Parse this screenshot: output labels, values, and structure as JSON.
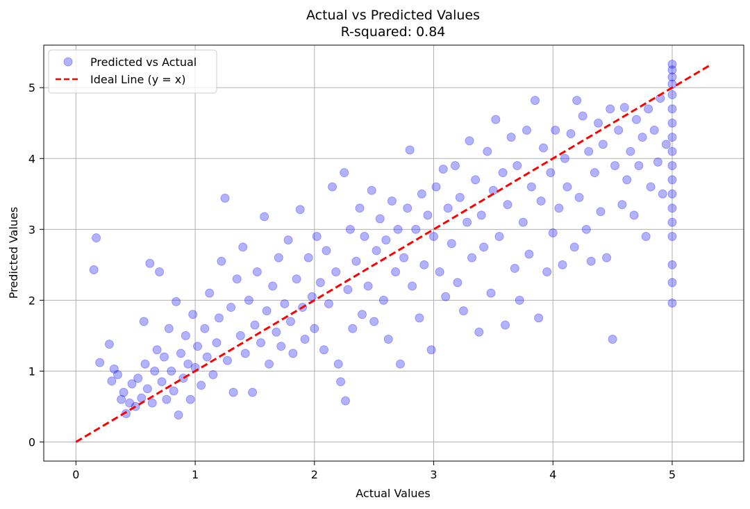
{
  "chart_data": {
    "type": "scatter",
    "title": "Actual vs Predicted Values",
    "subtitle": "R-squared: 0.84",
    "xlabel": "Actual Values",
    "ylabel": "Predicted Values",
    "xlim": [
      -0.27,
      5.6
    ],
    "ylim": [
      -0.27,
      5.6
    ],
    "x_ticks": [
      0,
      1,
      2,
      3,
      4,
      5
    ],
    "y_ticks": [
      0,
      1,
      2,
      3,
      4,
      5
    ],
    "grid": true,
    "legend_position": "top-left",
    "series": [
      {
        "name": "Predicted vs Actual",
        "kind": "scatter",
        "color": "#0000ff",
        "opacity": 0.3,
        "points": [
          [
            0.15,
            2.43
          ],
          [
            0.17,
            2.88
          ],
          [
            0.2,
            1.12
          ],
          [
            0.28,
            1.38
          ],
          [
            0.3,
            0.86
          ],
          [
            0.32,
            1.03
          ],
          [
            0.35,
            0.95
          ],
          [
            0.38,
            0.6
          ],
          [
            0.4,
            0.7
          ],
          [
            0.42,
            0.4
          ],
          [
            0.45,
            0.55
          ],
          [
            0.47,
            0.82
          ],
          [
            0.5,
            0.5
          ],
          [
            0.52,
            0.9
          ],
          [
            0.55,
            0.62
          ],
          [
            0.57,
            1.7
          ],
          [
            0.58,
            1.1
          ],
          [
            0.6,
            0.75
          ],
          [
            0.62,
            2.52
          ],
          [
            0.64,
            0.55
          ],
          [
            0.66,
            1.0
          ],
          [
            0.68,
            1.3
          ],
          [
            0.7,
            2.4
          ],
          [
            0.72,
            0.85
          ],
          [
            0.74,
            1.2
          ],
          [
            0.76,
            0.6
          ],
          [
            0.78,
            1.6
          ],
          [
            0.8,
            1.0
          ],
          [
            0.82,
            0.72
          ],
          [
            0.84,
            1.98
          ],
          [
            0.86,
            0.38
          ],
          [
            0.88,
            1.25
          ],
          [
            0.9,
            0.9
          ],
          [
            0.92,
            1.5
          ],
          [
            0.94,
            1.1
          ],
          [
            0.96,
            0.6
          ],
          [
            0.98,
            1.8
          ],
          [
            1.0,
            1.05
          ],
          [
            1.02,
            1.35
          ],
          [
            1.05,
            0.8
          ],
          [
            1.08,
            1.6
          ],
          [
            1.1,
            1.2
          ],
          [
            1.12,
            2.1
          ],
          [
            1.15,
            0.95
          ],
          [
            1.18,
            1.4
          ],
          [
            1.2,
            1.75
          ],
          [
            1.22,
            2.55
          ],
          [
            1.25,
            3.44
          ],
          [
            1.27,
            1.15
          ],
          [
            1.3,
            1.9
          ],
          [
            1.32,
            0.7
          ],
          [
            1.35,
            2.3
          ],
          [
            1.38,
            1.5
          ],
          [
            1.4,
            2.75
          ],
          [
            1.42,
            1.25
          ],
          [
            1.45,
            2.0
          ],
          [
            1.48,
            0.7
          ],
          [
            1.5,
            1.65
          ],
          [
            1.52,
            2.4
          ],
          [
            1.55,
            1.4
          ],
          [
            1.58,
            3.18
          ],
          [
            1.6,
            1.85
          ],
          [
            1.62,
            1.1
          ],
          [
            1.65,
            2.2
          ],
          [
            1.68,
            1.55
          ],
          [
            1.7,
            2.6
          ],
          [
            1.72,
            1.35
          ],
          [
            1.75,
            1.95
          ],
          [
            1.78,
            2.85
          ],
          [
            1.8,
            1.7
          ],
          [
            1.82,
            1.25
          ],
          [
            1.85,
            2.3
          ],
          [
            1.88,
            3.28
          ],
          [
            1.9,
            1.9
          ],
          [
            1.92,
            1.45
          ],
          [
            1.95,
            2.6
          ],
          [
            1.98,
            2.05
          ],
          [
            2.0,
            1.6
          ],
          [
            2.02,
            2.9
          ],
          [
            2.05,
            2.25
          ],
          [
            2.08,
            1.3
          ],
          [
            2.1,
            2.7
          ],
          [
            2.12,
            1.95
          ],
          [
            2.15,
            3.6
          ],
          [
            2.18,
            2.4
          ],
          [
            2.2,
            1.1
          ],
          [
            2.22,
            0.85
          ],
          [
            2.25,
            3.8
          ],
          [
            2.26,
            0.58
          ],
          [
            2.28,
            2.15
          ],
          [
            2.3,
            3.0
          ],
          [
            2.32,
            1.6
          ],
          [
            2.35,
            2.55
          ],
          [
            2.38,
            3.3
          ],
          [
            2.4,
            1.8
          ],
          [
            2.42,
            2.9
          ],
          [
            2.45,
            2.2
          ],
          [
            2.48,
            3.55
          ],
          [
            2.5,
            1.7
          ],
          [
            2.52,
            2.7
          ],
          [
            2.55,
            3.15
          ],
          [
            2.58,
            2.0
          ],
          [
            2.6,
            2.85
          ],
          [
            2.62,
            1.45
          ],
          [
            2.65,
            3.4
          ],
          [
            2.68,
            2.4
          ],
          [
            2.7,
            3.0
          ],
          [
            2.72,
            1.1
          ],
          [
            2.75,
            2.6
          ],
          [
            2.78,
            3.3
          ],
          [
            2.8,
            4.12
          ],
          [
            2.82,
            2.2
          ],
          [
            2.85,
            3.0
          ],
          [
            2.88,
            1.75
          ],
          [
            2.9,
            3.5
          ],
          [
            2.92,
            2.5
          ],
          [
            2.95,
            3.2
          ],
          [
            2.98,
            1.3
          ],
          [
            3.0,
            2.9
          ],
          [
            3.02,
            3.6
          ],
          [
            3.05,
            2.4
          ],
          [
            3.08,
            3.85
          ],
          [
            3.1,
            2.05
          ],
          [
            3.12,
            3.3
          ],
          [
            3.15,
            2.8
          ],
          [
            3.18,
            3.9
          ],
          [
            3.2,
            2.25
          ],
          [
            3.22,
            3.45
          ],
          [
            3.25,
            1.85
          ],
          [
            3.28,
            3.1
          ],
          [
            3.3,
            4.25
          ],
          [
            3.32,
            2.6
          ],
          [
            3.35,
            3.7
          ],
          [
            3.38,
            1.55
          ],
          [
            3.4,
            3.2
          ],
          [
            3.42,
            2.75
          ],
          [
            3.45,
            4.1
          ],
          [
            3.48,
            2.1
          ],
          [
            3.5,
            3.55
          ],
          [
            3.52,
            4.55
          ],
          [
            3.55,
            2.9
          ],
          [
            3.58,
            3.8
          ],
          [
            3.6,
            1.65
          ],
          [
            3.62,
            3.35
          ],
          [
            3.65,
            4.3
          ],
          [
            3.68,
            2.45
          ],
          [
            3.7,
            3.9
          ],
          [
            3.72,
            2.0
          ],
          [
            3.75,
            3.1
          ],
          [
            3.78,
            4.4
          ],
          [
            3.8,
            2.65
          ],
          [
            3.82,
            3.6
          ],
          [
            3.85,
            4.82
          ],
          [
            3.88,
            1.75
          ],
          [
            3.9,
            3.4
          ],
          [
            3.92,
            4.15
          ],
          [
            3.95,
            2.4
          ],
          [
            3.98,
            3.8
          ],
          [
            4.0,
            2.95
          ],
          [
            4.02,
            4.4
          ],
          [
            4.05,
            3.3
          ],
          [
            4.08,
            2.5
          ],
          [
            4.1,
            4.0
          ],
          [
            4.12,
            3.6
          ],
          [
            4.15,
            4.35
          ],
          [
            4.18,
            2.75
          ],
          [
            4.2,
            4.82
          ],
          [
            4.22,
            3.45
          ],
          [
            4.25,
            4.6
          ],
          [
            4.28,
            3.0
          ],
          [
            4.3,
            4.1
          ],
          [
            4.32,
            2.55
          ],
          [
            4.35,
            3.8
          ],
          [
            4.38,
            4.5
          ],
          [
            4.4,
            3.25
          ],
          [
            4.42,
            4.2
          ],
          [
            4.45,
            2.6
          ],
          [
            4.48,
            4.7
          ],
          [
            4.5,
            1.45
          ],
          [
            4.52,
            3.9
          ],
          [
            4.55,
            4.4
          ],
          [
            4.58,
            3.35
          ],
          [
            4.6,
            4.72
          ],
          [
            4.62,
            3.7
          ],
          [
            4.65,
            4.1
          ],
          [
            4.68,
            3.2
          ],
          [
            4.7,
            4.55
          ],
          [
            4.72,
            3.9
          ],
          [
            4.75,
            4.3
          ],
          [
            4.78,
            2.9
          ],
          [
            4.8,
            4.7
          ],
          [
            4.82,
            3.6
          ],
          [
            4.85,
            4.4
          ],
          [
            4.88,
            3.95
          ],
          [
            4.9,
            4.85
          ],
          [
            4.92,
            3.5
          ],
          [
            4.95,
            4.2
          ],
          [
            5.0,
            1.96
          ],
          [
            5.0,
            2.25
          ],
          [
            5.0,
            2.5
          ],
          [
            5.0,
            2.9
          ],
          [
            5.0,
            3.1
          ],
          [
            5.0,
            3.3
          ],
          [
            5.0,
            3.5
          ],
          [
            5.0,
            3.7
          ],
          [
            5.0,
            3.9
          ],
          [
            5.0,
            4.1
          ],
          [
            5.0,
            4.3
          ],
          [
            5.0,
            4.5
          ],
          [
            5.0,
            4.7
          ],
          [
            5.0,
            4.9
          ],
          [
            5.0,
            5.05
          ],
          [
            5.0,
            5.15
          ],
          [
            5.0,
            5.25
          ],
          [
            5.0,
            5.33
          ]
        ]
      },
      {
        "name": "Ideal Line (y = x)",
        "kind": "line",
        "color": "#ff0000",
        "dash": "dashed",
        "x": [
          0,
          5.33
        ],
        "y": [
          0,
          5.33
        ]
      }
    ]
  }
}
